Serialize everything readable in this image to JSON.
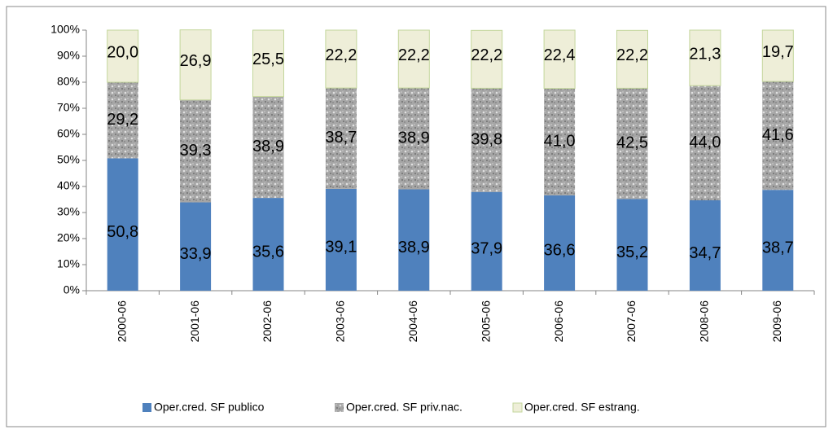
{
  "chart_data": {
    "type": "stacked_bar",
    "categories": [
      "2000-06",
      "2001-06",
      "2002-06",
      "2003-06",
      "2004-06",
      "2005-06",
      "2006-06",
      "2007-06",
      "2008-06",
      "2009-06"
    ],
    "series": [
      {
        "name": "Oper.cred. SF publico",
        "color": "#4f81bd",
        "values": [
          50.8,
          33.9,
          35.6,
          39.1,
          38.9,
          37.9,
          36.6,
          35.2,
          34.7,
          38.7
        ],
        "value_labels": [
          "50,8",
          "33,9",
          "35,6",
          "39,1",
          "38,9",
          "37,9",
          "36,6",
          "35,2",
          "34,7",
          "38,7"
        ]
      },
      {
        "name": "Oper.cred. SF priv.nac.",
        "color": "#a6a6a6",
        "values": [
          29.2,
          39.3,
          38.9,
          38.7,
          38.9,
          39.8,
          41.0,
          42.5,
          44.0,
          41.6
        ],
        "value_labels": [
          "29,2",
          "39,3",
          "38,9",
          "38,7",
          "38,9",
          "39,8",
          "41,0",
          "42,5",
          "44,0",
          "41,6"
        ]
      },
      {
        "name": "Oper.cred. SF estrang.",
        "color": "#eeeed8",
        "values": [
          20.0,
          26.9,
          25.5,
          22.2,
          22.2,
          22.2,
          22.4,
          22.2,
          21.3,
          19.7
        ],
        "value_labels": [
          "20,0",
          "26,9",
          "25,5",
          "22,2",
          "22,2",
          "22,2",
          "22,4",
          "22,2",
          "21,3",
          "19,7"
        ]
      }
    ],
    "ylim": [
      0,
      100
    ],
    "yticks": [
      {
        "value": 0,
        "label": "0%"
      },
      {
        "value": 10,
        "label": "10%"
      },
      {
        "value": 20,
        "label": "20%"
      },
      {
        "value": 30,
        "label": "30%"
      },
      {
        "value": 40,
        "label": "40%"
      },
      {
        "value": 50,
        "label": "50%"
      },
      {
        "value": 60,
        "label": "60%"
      },
      {
        "value": 70,
        "label": "70%"
      },
      {
        "value": 80,
        "label": "80%"
      },
      {
        "value": 90,
        "label": "90%"
      },
      {
        "value": 100,
        "label": "100%"
      }
    ],
    "legend": "bottom"
  }
}
